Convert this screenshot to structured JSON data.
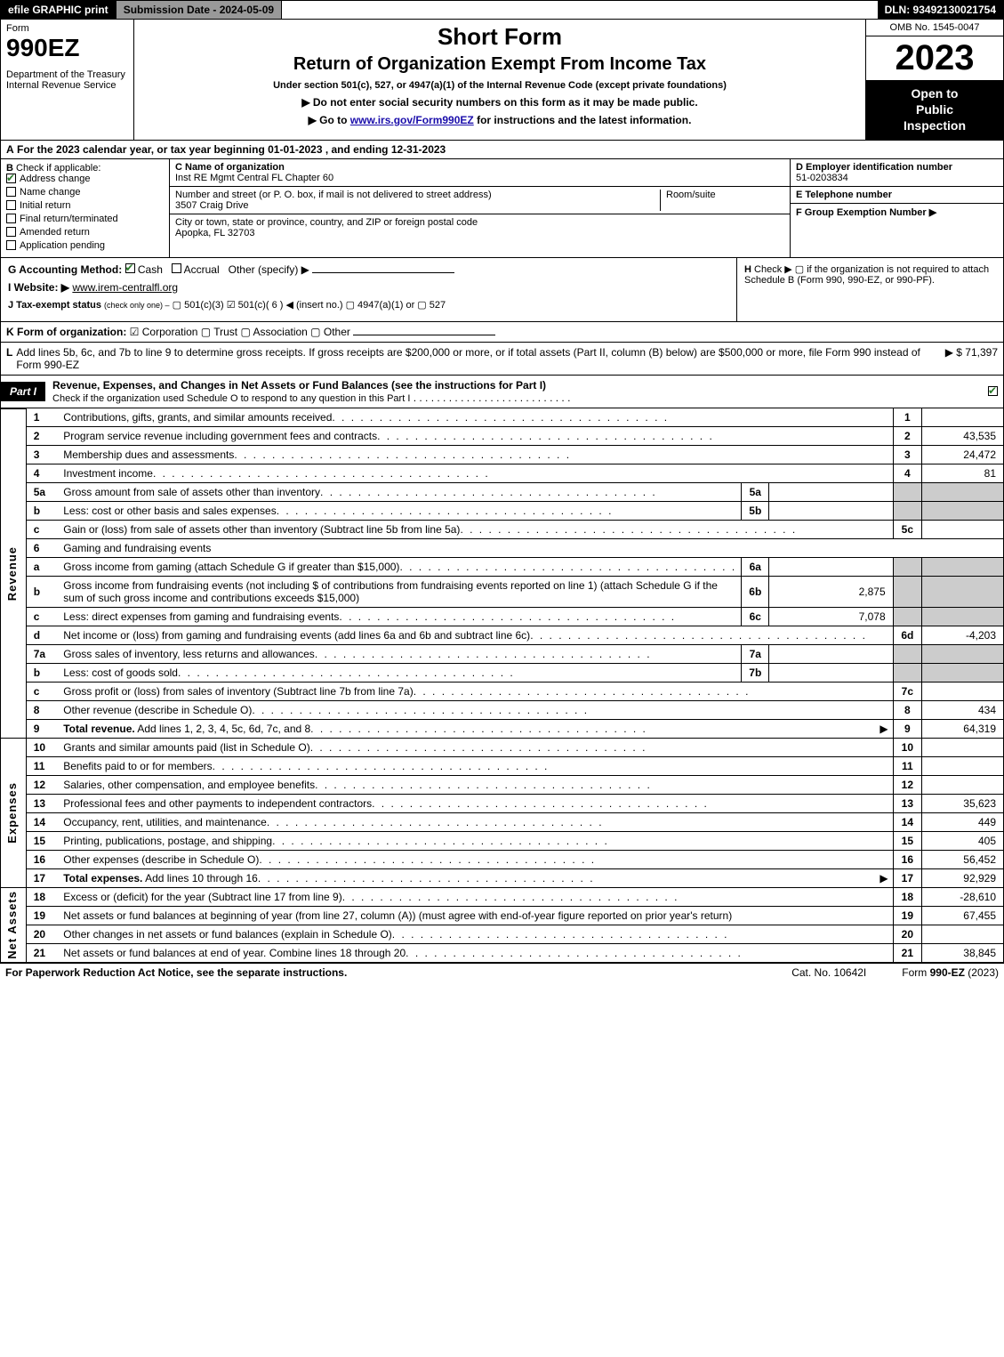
{
  "topbar": {
    "efile": "efile GRAPHIC print",
    "submission_label": "Submission Date - 2024-05-09",
    "dln": "DLN: 93492130021754"
  },
  "header": {
    "form_word": "Form",
    "form_number": "990EZ",
    "dept": "Department of the Treasury\nInternal Revenue Service",
    "title1": "Short Form",
    "title2": "Return of Organization Exempt From Income Tax",
    "subtitle": "Under section 501(c), 527, or 4947(a)(1) of the Internal Revenue Code (except private foundations)",
    "instr1": "▶ Do not enter social security numbers on this form as it may be made public.",
    "instr2_pre": "▶ Go to ",
    "instr2_link": "www.irs.gov/Form990EZ",
    "instr2_post": " for instructions and the latest information.",
    "omb": "OMB No. 1545-0047",
    "year": "2023",
    "inspection": "Open to\nPublic\nInspection"
  },
  "lineA": {
    "label": "A",
    "text": "For the 2023 calendar year, or tax year beginning 01-01-2023 , and ending 12-31-2023"
  },
  "B": {
    "label": "B",
    "check_if": "Check if applicable:",
    "items": [
      {
        "label": "Address change",
        "checked": true
      },
      {
        "label": "Name change",
        "checked": false
      },
      {
        "label": "Initial return",
        "checked": false
      },
      {
        "label": "Final return/terminated",
        "checked": false
      },
      {
        "label": "Amended return",
        "checked": false
      },
      {
        "label": "Application pending",
        "checked": false
      }
    ]
  },
  "C": {
    "name_label": "C Name of organization",
    "name": "Inst RE Mgmt Central FL Chapter 60",
    "street_label": "Number and street (or P. O. box, if mail is not delivered to street address)",
    "street": "3507 Craig Drive",
    "roomsuite_label": "Room/suite",
    "roomsuite": "",
    "city_label": "City or town, state or province, country, and ZIP or foreign postal code",
    "city": "Apopka, FL  32703"
  },
  "D": {
    "label": "D Employer identification number",
    "value": "51-0203834"
  },
  "E": {
    "label": "E Telephone number",
    "value": ""
  },
  "F": {
    "label": "F Group Exemption Number  ▶",
    "value": ""
  },
  "G": {
    "label": "G Accounting Method:",
    "cash_checked": true,
    "cash": "Cash",
    "accrual": "Accrual",
    "other": "Other (specify) ▶"
  },
  "H": {
    "label": "H",
    "text": "Check ▶  ▢  if the organization is not required to attach Schedule B (Form 990, 990-EZ, or 990-PF)."
  },
  "I": {
    "label": "I Website: ▶",
    "value": "www.irem-centralfl.org"
  },
  "J": {
    "label": "J Tax-exempt status",
    "sub": "(check only one) –",
    "opts": "▢ 501(c)(3)  ☑ 501(c)( 6 ) ◀ (insert no.)  ▢ 4947(a)(1) or  ▢ 527"
  },
  "K": {
    "label": "K Form of organization:",
    "opts": "☑ Corporation  ▢ Trust  ▢ Association  ▢ Other"
  },
  "L": {
    "label": "L",
    "text": "Add lines 5b, 6c, and 7b to line 9 to determine gross receipts. If gross receipts are $200,000 or more, or if total assets (Part II, column (B) below) are $500,000 or more, file Form 990 instead of Form 990-EZ",
    "amount": "▶ $ 71,397"
  },
  "part1": {
    "tab": "Part I",
    "title": "Revenue, Expenses, and Changes in Net Assets or Fund Balances (see the instructions for Part I)",
    "checkline": "Check if the organization used Schedule O to respond to any question in this Part I",
    "checked": true
  },
  "side_labels": {
    "revenue": "Revenue",
    "expenses": "Expenses",
    "netassets": "Net Assets"
  },
  "rows": [
    {
      "n": "1",
      "d": "Contributions, gifts, grants, and similar amounts received",
      "box": "1",
      "val": ""
    },
    {
      "n": "2",
      "d": "Program service revenue including government fees and contracts",
      "box": "2",
      "val": "43,535"
    },
    {
      "n": "3",
      "d": "Membership dues and assessments",
      "box": "3",
      "val": "24,472"
    },
    {
      "n": "4",
      "d": "Investment income",
      "box": "4",
      "val": "81"
    },
    {
      "n": "5a",
      "d": "Gross amount from sale of assets other than inventory",
      "inlabel": "5a",
      "inval": "",
      "box": "",
      "val": "",
      "shade": true
    },
    {
      "n": "b",
      "d": "Less: cost or other basis and sales expenses",
      "inlabel": "5b",
      "inval": "",
      "box": "",
      "val": "",
      "shade": true
    },
    {
      "n": "c",
      "d": "Gain or (loss) from sale of assets other than inventory (Subtract line 5b from line 5a)",
      "box": "5c",
      "val": ""
    },
    {
      "n": "6",
      "d": "Gaming and fundraising events",
      "noboxes": true
    },
    {
      "n": "a",
      "d": "Gross income from gaming (attach Schedule G if greater than $15,000)",
      "inlabel": "6a",
      "inval": "",
      "shade": true
    },
    {
      "n": "b",
      "d": "Gross income from fundraising events (not including $                  of contributions from fundraising events reported on line 1) (attach Schedule G if the sum of such gross income and contributions exceeds $15,000)",
      "inlabel": "6b",
      "inval": "2,875",
      "shade": true,
      "tall": true
    },
    {
      "n": "c",
      "d": "Less: direct expenses from gaming and fundraising events",
      "inlabel": "6c",
      "inval": "7,078",
      "shade": true
    },
    {
      "n": "d",
      "d": "Net income or (loss) from gaming and fundraising events (add lines 6a and 6b and subtract line 6c)",
      "box": "6d",
      "val": "-4,203"
    },
    {
      "n": "7a",
      "d": "Gross sales of inventory, less returns and allowances",
      "inlabel": "7a",
      "inval": "",
      "shade": true
    },
    {
      "n": "b",
      "d": "Less: cost of goods sold",
      "inlabel": "7b",
      "inval": "",
      "shade": true
    },
    {
      "n": "c",
      "d": "Gross profit or (loss) from sales of inventory (Subtract line 7b from line 7a)",
      "box": "7c",
      "val": ""
    },
    {
      "n": "8",
      "d": "Other revenue (describe in Schedule O)",
      "box": "8",
      "val": "434"
    },
    {
      "n": "9",
      "d": "Total revenue. Add lines 1, 2, 3, 4, 5c, 6d, 7c, and 8",
      "box": "9",
      "val": "64,319",
      "bold": true,
      "arrow": true
    }
  ],
  "exp_rows": [
    {
      "n": "10",
      "d": "Grants and similar amounts paid (list in Schedule O)",
      "box": "10",
      "val": ""
    },
    {
      "n": "11",
      "d": "Benefits paid to or for members",
      "box": "11",
      "val": ""
    },
    {
      "n": "12",
      "d": "Salaries, other compensation, and employee benefits",
      "box": "12",
      "val": ""
    },
    {
      "n": "13",
      "d": "Professional fees and other payments to independent contractors",
      "box": "13",
      "val": "35,623"
    },
    {
      "n": "14",
      "d": "Occupancy, rent, utilities, and maintenance",
      "box": "14",
      "val": "449"
    },
    {
      "n": "15",
      "d": "Printing, publications, postage, and shipping",
      "box": "15",
      "val": "405"
    },
    {
      "n": "16",
      "d": "Other expenses (describe in Schedule O)",
      "box": "16",
      "val": "56,452"
    },
    {
      "n": "17",
      "d": "Total expenses. Add lines 10 through 16",
      "box": "17",
      "val": "92,929",
      "bold": true,
      "arrow": true
    }
  ],
  "na_rows": [
    {
      "n": "18",
      "d": "Excess or (deficit) for the year (Subtract line 17 from line 9)",
      "box": "18",
      "val": "-28,610"
    },
    {
      "n": "19",
      "d": "Net assets or fund balances at beginning of year (from line 27, column (A)) (must agree with end-of-year figure reported on prior year's return)",
      "box": "19",
      "val": "67,455",
      "tall": true
    },
    {
      "n": "20",
      "d": "Other changes in net assets or fund balances (explain in Schedule O)",
      "box": "20",
      "val": ""
    },
    {
      "n": "21",
      "d": "Net assets or fund balances at end of year. Combine lines 18 through 20",
      "box": "21",
      "val": "38,845"
    }
  ],
  "footer": {
    "left": "For Paperwork Reduction Act Notice, see the separate instructions.",
    "mid": "Cat. No. 10642I",
    "right_pre": "Form ",
    "right_bold": "990-EZ",
    "right_post": " (2023)"
  }
}
